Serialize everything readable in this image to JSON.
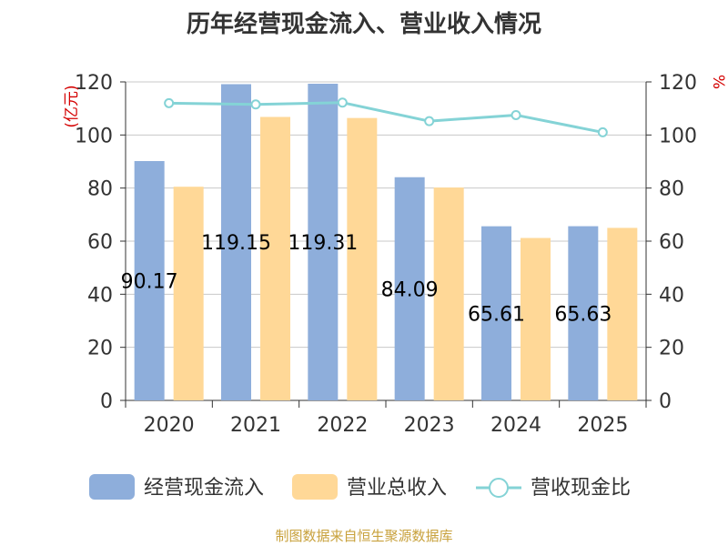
{
  "title": "历年经营现金流入、营业收入情况",
  "source": "制图数据来自恒生聚源数据库",
  "colors": {
    "bar1": "#8eaedb",
    "bar2": "#ffd897",
    "line": "#84d3d6"
  },
  "chart_data": {
    "type": "bar",
    "categories": [
      "2020",
      "2021",
      "2022",
      "2023",
      "2024",
      "2025"
    ],
    "series": [
      {
        "name": "经营现金流入",
        "type": "bar",
        "axis": "left",
        "values": [
          90.17,
          119.15,
          119.31,
          84.09,
          65.61,
          65.63
        ],
        "labels": [
          "90.17",
          "119.15",
          "119.31",
          "84.09",
          "65.61",
          "65.63"
        ]
      },
      {
        "name": "营业总收入",
        "type": "bar",
        "axis": "left",
        "values": [
          80.5,
          106.8,
          106.4,
          80.2,
          61.2,
          65.0
        ]
      },
      {
        "name": "营收现金比",
        "type": "line",
        "axis": "right",
        "values": [
          112.0,
          111.5,
          112.2,
          105.2,
          107.5,
          101.0
        ]
      }
    ],
    "ylabel": "(亿元)",
    "y2label": "%",
    "ylim": [
      0,
      120
    ],
    "y2lim": [
      0,
      120
    ],
    "yticks": [
      "0",
      "20",
      "40",
      "60",
      "80",
      "100",
      "120"
    ],
    "y2ticks": [
      "0",
      "20",
      "40",
      "60",
      "80",
      "100",
      "120"
    ],
    "grid": true,
    "legend": "bottom"
  }
}
